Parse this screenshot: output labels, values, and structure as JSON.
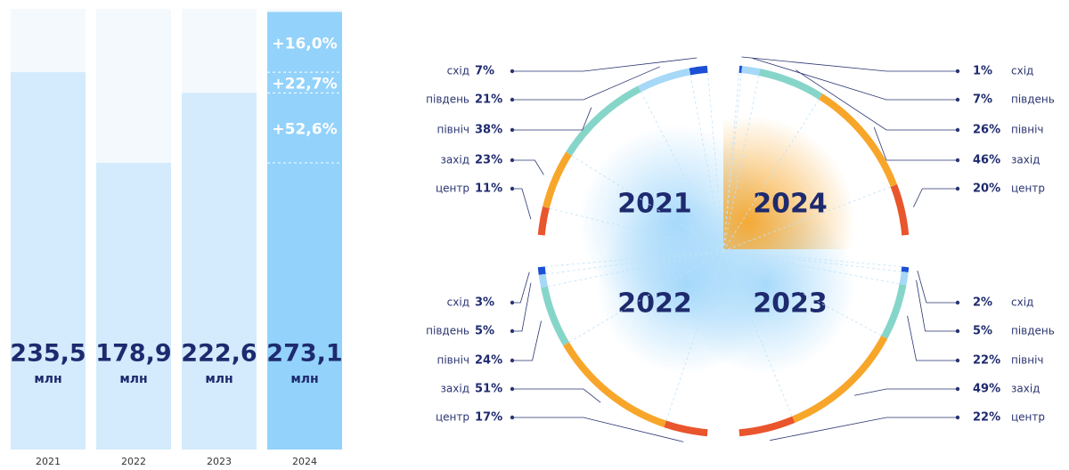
{
  "chart_data": [
    {
      "type": "bar",
      "categories": [
        "2021",
        "2022",
        "2023",
        "2024"
      ],
      "values": [
        235.5,
        178.9,
        222.6,
        273.1
      ],
      "value_labels": [
        "235,5",
        "178,9",
        "222,6",
        "273,1"
      ],
      "unit": "млн",
      "colors": [
        "#d3ebfc",
        "#d3ebfc",
        "#d3ebfc",
        "#93d2fb"
      ],
      "ylim": [
        0,
        275
      ],
      "growth": {
        "values": [
          16.0,
          52.6,
          22.7
        ],
        "value_labels": [
          "+16,0%",
          "+52,6%",
          "+22,7%"
        ]
      }
    },
    {
      "type": "radial",
      "categories": [
        "схід",
        "південь",
        "північ",
        "захід",
        "центр"
      ],
      "colors": [
        "#1a4fd6",
        "#a6d8f7",
        "#86d5c9",
        "#f7a62a",
        "#e9552c"
      ],
      "series": [
        {
          "name": "2021",
          "corner": "top-left",
          "values": [
            7,
            21,
            38,
            23,
            11
          ],
          "value_labels": [
            "7%",
            "21%",
            "38%",
            "23%",
            "11%"
          ]
        },
        {
          "name": "2024",
          "corner": "top-right",
          "values": [
            1,
            7,
            26,
            46,
            20
          ],
          "value_labels": [
            "1%",
            "7%",
            "26%",
            "46%",
            "20%"
          ]
        },
        {
          "name": "2022",
          "corner": "bottom-left",
          "values": [
            3,
            5,
            24,
            51,
            17
          ],
          "value_labels": [
            "3%",
            "5%",
            "24%",
            "51%",
            "17%"
          ]
        },
        {
          "name": "2023",
          "corner": "bottom-right",
          "values": [
            2,
            5,
            22,
            49,
            22
          ],
          "value_labels": [
            "2%",
            "5%",
            "22%",
            "49%",
            "22%"
          ]
        }
      ]
    }
  ]
}
